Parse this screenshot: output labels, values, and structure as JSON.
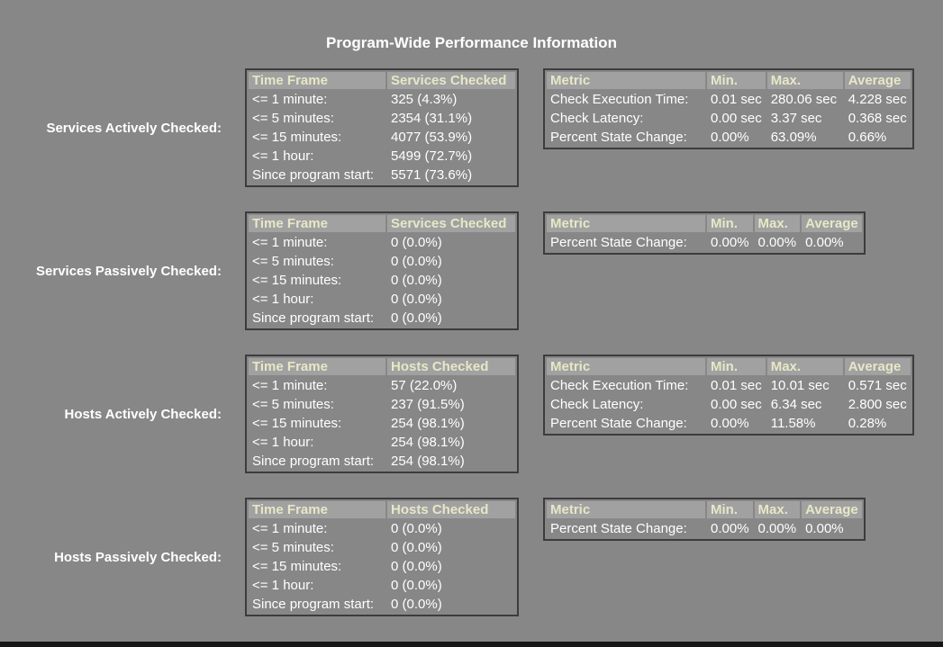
{
  "title": "Program-Wide Performance Information",
  "colors": {
    "page_bg": "#878787",
    "table_header_bg": "#A1A1A1",
    "table_header_text": "#E7E7C7",
    "table_body_text": "#FFFFFF",
    "table_border": "#3C3C3C",
    "title_text": "#FFFFFF"
  },
  "sections": [
    {
      "label": "Services Actively Checked:",
      "time_table": {
        "headers": [
          "Time Frame",
          "Services Checked"
        ],
        "rows": [
          [
            "<= 1 minute:",
            "325 (4.3%)"
          ],
          [
            "<= 5 minutes:",
            "2354 (31.1%)"
          ],
          [
            "<= 15 minutes:",
            "4077 (53.9%)"
          ],
          [
            "<= 1 hour:",
            "5499 (72.7%)"
          ],
          [
            "Since program start:",
            "5571 (73.6%)"
          ]
        ]
      },
      "metric_table": {
        "headers": [
          "Metric",
          "Min.",
          "Max.",
          "Average"
        ],
        "rows": [
          [
            "Check Execution Time:",
            "0.01 sec",
            "280.06 sec",
            "4.228 sec"
          ],
          [
            "Check Latency:",
            "0.00 sec",
            "3.37 sec",
            "0.368 sec"
          ],
          [
            "Percent State Change:",
            "0.00%",
            "63.09%",
            "0.66%"
          ]
        ]
      }
    },
    {
      "label": "Services Passively Checked:",
      "time_table": {
        "headers": [
          "Time Frame",
          "Services Checked"
        ],
        "rows": [
          [
            "<= 1 minute:",
            "0 (0.0%)"
          ],
          [
            "<= 5 minutes:",
            "0 (0.0%)"
          ],
          [
            "<= 15 minutes:",
            "0 (0.0%)"
          ],
          [
            "<= 1 hour:",
            "0 (0.0%)"
          ],
          [
            "Since program start:",
            "0 (0.0%)"
          ]
        ]
      },
      "metric_table": {
        "headers": [
          "Metric",
          "Min.",
          "Max.",
          "Average"
        ],
        "rows": [
          [
            "Percent State Change:",
            "0.00%",
            "0.00%",
            "0.00%"
          ]
        ]
      }
    },
    {
      "label": "Hosts Actively Checked:",
      "time_table": {
        "headers": [
          "Time Frame",
          "Hosts Checked"
        ],
        "rows": [
          [
            "<= 1 minute:",
            "57 (22.0%)"
          ],
          [
            "<= 5 minutes:",
            "237 (91.5%)"
          ],
          [
            "<= 15 minutes:",
            "254 (98.1%)"
          ],
          [
            "<= 1 hour:",
            "254 (98.1%)"
          ],
          [
            "Since program start:",
            "254 (98.1%)"
          ]
        ]
      },
      "metric_table": {
        "headers": [
          "Metric",
          "Min.",
          "Max.",
          "Average"
        ],
        "rows": [
          [
            "Check Execution Time:",
            "0.01 sec",
            "10.01 sec",
            "0.571 sec"
          ],
          [
            "Check Latency:",
            "0.00 sec",
            "6.34 sec",
            "2.800 sec"
          ],
          [
            "Percent State Change:",
            "0.00%",
            "11.58%",
            "0.28%"
          ]
        ]
      }
    },
    {
      "label": "Hosts Passively Checked:",
      "time_table": {
        "headers": [
          "Time Frame",
          "Hosts Checked"
        ],
        "rows": [
          [
            "<= 1 minute:",
            "0 (0.0%)"
          ],
          [
            "<= 5 minutes:",
            "0 (0.0%)"
          ],
          [
            "<= 15 minutes:",
            "0 (0.0%)"
          ],
          [
            "<= 1 hour:",
            "0 (0.0%)"
          ],
          [
            "Since program start:",
            "0 (0.0%)"
          ]
        ]
      },
      "metric_table": {
        "headers": [
          "Metric",
          "Min.",
          "Max.",
          "Average"
        ],
        "rows": [
          [
            "Percent State Change:",
            "0.00%",
            "0.00%",
            "0.00%"
          ]
        ]
      }
    }
  ]
}
